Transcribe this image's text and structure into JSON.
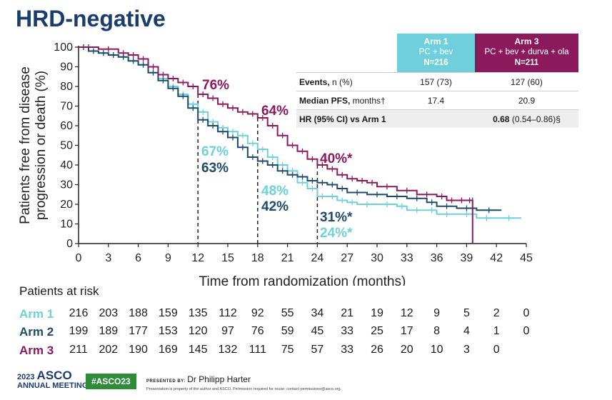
{
  "title": "HRD-negative",
  "colors": {
    "arm1": "#6fd0dc",
    "arm2": "#1e4a6d",
    "arm3": "#8a1a5c",
    "title": "#1b3d6e"
  },
  "chart_data": {
    "type": "line",
    "xlabel": "Time from randomization (months)",
    "ylabel_line1": "Patients free from disease",
    "ylabel_line2": "progression or death (%)",
    "xlim": [
      0,
      45
    ],
    "ylim": [
      0,
      100
    ],
    "xticks": [
      0,
      3,
      6,
      9,
      12,
      15,
      18,
      21,
      24,
      27,
      30,
      33,
      36,
      39,
      42,
      45
    ],
    "yticks": [
      0,
      10,
      20,
      30,
      40,
      50,
      60,
      70,
      80,
      90,
      100
    ],
    "series": [
      {
        "name": "Arm 1",
        "color": "#6fd0dc",
        "x": [
          0,
          1,
          2,
          3,
          4,
          5,
          6,
          7,
          8,
          9,
          10,
          11,
          12,
          13,
          14,
          15,
          16,
          17,
          18,
          19,
          20,
          21,
          22,
          23,
          24,
          25,
          26,
          27,
          28,
          30,
          32,
          33,
          35,
          36,
          38,
          40,
          42,
          44.5
        ],
        "y": [
          100,
          98,
          97,
          96,
          95,
          93,
          91,
          87,
          84,
          80,
          76,
          71,
          67,
          62,
          59,
          57,
          55,
          51,
          48,
          44,
          40,
          37,
          31,
          28,
          24,
          24,
          22,
          21,
          20,
          20,
          19,
          17,
          17,
          15,
          15,
          13,
          13,
          13
        ]
      },
      {
        "name": "Arm 2",
        "color": "#1e4a6d",
        "x": [
          0,
          1,
          2,
          3,
          4,
          5,
          6,
          7,
          8,
          9,
          10,
          11,
          12,
          13,
          14,
          15,
          16,
          17,
          18,
          19,
          20,
          21,
          22,
          23,
          24,
          25,
          26,
          27,
          29,
          31,
          33,
          35,
          36,
          38,
          40,
          42.5
        ],
        "y": [
          100,
          98,
          97,
          96,
          95,
          93,
          91,
          87,
          83,
          79,
          75,
          69,
          63,
          60,
          57,
          54,
          49,
          44,
          42,
          40,
          37,
          35,
          34,
          32,
          31,
          30,
          28,
          26,
          25,
          24,
          23,
          21,
          19,
          18,
          17,
          17
        ]
      },
      {
        "name": "Arm 3",
        "color": "#8a1a5c",
        "x": [
          0,
          2,
          4,
          5,
          6,
          7,
          8,
          9,
          10,
          11,
          12,
          13,
          14,
          15,
          16,
          17,
          18,
          19,
          20,
          21,
          22,
          23,
          24,
          25,
          26,
          27,
          28,
          29,
          30,
          32,
          34,
          36,
          37,
          38,
          39,
          39.6,
          39.6
        ],
        "y": [
          100,
          99,
          97,
          96,
          94,
          90,
          86,
          84,
          82,
          80,
          76,
          74,
          71,
          69,
          67,
          66,
          64,
          60,
          55,
          50,
          47,
          43,
          40,
          38,
          35,
          33,
          32,
          31,
          29,
          27,
          25,
          24,
          22,
          22,
          22,
          22,
          0
        ]
      }
    ],
    "annotations": [
      {
        "text": "76%",
        "series": "Arm 3",
        "x": 12,
        "y": 76
      },
      {
        "text": "64%",
        "series": "Arm 3",
        "x": 18,
        "y": 64
      },
      {
        "text": "40%*",
        "series": "Arm 3",
        "x": 24,
        "y": 40
      },
      {
        "text": "67%",
        "series": "Arm 1",
        "x": 12,
        "y": 67
      },
      {
        "text": "63%",
        "series": "Arm 2",
        "x": 12,
        "y": 63
      },
      {
        "text": "48%",
        "series": "Arm 1",
        "x": 18,
        "y": 48
      },
      {
        "text": "42%",
        "series": "Arm 2",
        "x": 18,
        "y": 42
      },
      {
        "text": "31%*",
        "series": "Arm 2",
        "x": 24,
        "y": 31
      },
      {
        "text": "24%*",
        "series": "Arm 1",
        "x": 24,
        "y": 24
      }
    ],
    "reference_lines_x": [
      12,
      18,
      24
    ]
  },
  "stats_table": {
    "arm1_name": "Arm 1",
    "arm1_regimen": "PC + bev",
    "arm1_n": "N=216",
    "arm3_name": "Arm 3",
    "arm3_regimen": "PC + bev + durva + ola",
    "arm3_n": "N=211",
    "rows": [
      {
        "label_bold": "Events,",
        "label_rest": " n (%)",
        "arm1": "157 (73)",
        "arm3": "127 (60)"
      },
      {
        "label_bold": "Median PFS,",
        "label_rest": " months†",
        "arm1": "17.4",
        "arm3": "20.9"
      },
      {
        "label_bold": "HR (95% CI) vs Arm 1",
        "label_rest": "",
        "arm1": "",
        "arm3_bold": "0.68",
        "arm3_rest": " (0.54–0.86)§"
      }
    ]
  },
  "risk_table": {
    "title": "Patients at risk",
    "rows": [
      {
        "label": "Arm 1",
        "values": [
          "216",
          "203",
          "188",
          "159",
          "135",
          "112",
          "92",
          "55",
          "34",
          "21",
          "19",
          "12",
          "9",
          "5",
          "2",
          "0"
        ]
      },
      {
        "label": "Arm 2",
        "values": [
          "199",
          "189",
          "177",
          "153",
          "120",
          "97",
          "76",
          "59",
          "45",
          "33",
          "25",
          "17",
          "8",
          "4",
          "1",
          "0"
        ]
      },
      {
        "label": "Arm 3",
        "values": [
          "211",
          "202",
          "190",
          "169",
          "145",
          "132",
          "111",
          "75",
          "57",
          "33",
          "26",
          "20",
          "10",
          "3",
          "0"
        ]
      }
    ]
  },
  "footer": {
    "year": "2023",
    "org": "ASCO",
    "meeting": "ANNUAL MEETING",
    "hashtag": "#ASCO23",
    "presented_by_label": "PRESENTED BY:",
    "presenter": "Dr Philipp Harter",
    "note": "Presentation is property of the author and ASCO. Permission required for reuse; contact permissions@asco.org."
  }
}
